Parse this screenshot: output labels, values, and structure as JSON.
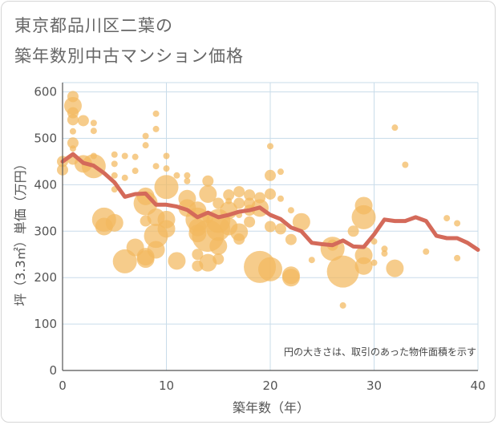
{
  "chart_data": {
    "type": "scatter",
    "title_lines": [
      "東京都品川区二葉の",
      "築年数別中古マンション価格"
    ],
    "xlabel": "築年数（年）",
    "ylabel": "坪（3.3㎡）単価（万円）",
    "xlim": [
      0,
      40
    ],
    "ylim": [
      0,
      620
    ],
    "x_ticks": [
      0,
      10,
      20,
      30,
      40
    ],
    "y_ticks": [
      0,
      100,
      200,
      300,
      400,
      500,
      600
    ],
    "grid": true,
    "note": "円の大きさは、取引のあった物件面積を示す",
    "bubble_color": "#f2b85e",
    "line_color": "#d46a5a",
    "bubbles": [
      {
        "x": 0,
        "y": 450,
        "s": 2
      },
      {
        "x": 0,
        "y": 432,
        "s": 2
      },
      {
        "x": 1,
        "y": 590,
        "s": 2
      },
      {
        "x": 1,
        "y": 570,
        "s": 3
      },
      {
        "x": 1,
        "y": 555,
        "s": 2
      },
      {
        "x": 1,
        "y": 540,
        "s": 2
      },
      {
        "x": 1,
        "y": 515,
        "s": 1
      },
      {
        "x": 1,
        "y": 490,
        "s": 2
      },
      {
        "x": 1,
        "y": 478,
        "s": 1
      },
      {
        "x": 1,
        "y": 455,
        "s": 2
      },
      {
        "x": 2,
        "y": 538,
        "s": 2
      },
      {
        "x": 2,
        "y": 445,
        "s": 3
      },
      {
        "x": 3,
        "y": 533,
        "s": 1
      },
      {
        "x": 3,
        "y": 516,
        "s": 1
      },
      {
        "x": 3,
        "y": 462,
        "s": 1
      },
      {
        "x": 3,
        "y": 440,
        "s": 4
      },
      {
        "x": 4,
        "y": 325,
        "s": 4
      },
      {
        "x": 4,
        "y": 310,
        "s": 3
      },
      {
        "x": 5,
        "y": 465,
        "s": 1
      },
      {
        "x": 5,
        "y": 445,
        "s": 1
      },
      {
        "x": 5,
        "y": 420,
        "s": 1
      },
      {
        "x": 5,
        "y": 390,
        "s": 1
      },
      {
        "x": 5,
        "y": 318,
        "s": 3
      },
      {
        "x": 6,
        "y": 462,
        "s": 1
      },
      {
        "x": 6,
        "y": 415,
        "s": 1
      },
      {
        "x": 6,
        "y": 235,
        "s": 4
      },
      {
        "x": 7,
        "y": 460,
        "s": 1
      },
      {
        "x": 7,
        "y": 430,
        "s": 1
      },
      {
        "x": 7,
        "y": 265,
        "s": 3
      },
      {
        "x": 8,
        "y": 505,
        "s": 1
      },
      {
        "x": 8,
        "y": 485,
        "s": 1
      },
      {
        "x": 8,
        "y": 375,
        "s": 3
      },
      {
        "x": 8,
        "y": 360,
        "s": 4
      },
      {
        "x": 8,
        "y": 322,
        "s": 2
      },
      {
        "x": 8,
        "y": 245,
        "s": 3
      },
      {
        "x": 8,
        "y": 240,
        "s": 3
      },
      {
        "x": 9,
        "y": 553,
        "s": 1
      },
      {
        "x": 9,
        "y": 520,
        "s": 1
      },
      {
        "x": 9,
        "y": 440,
        "s": 1
      },
      {
        "x": 9,
        "y": 330,
        "s": 3
      },
      {
        "x": 9,
        "y": 290,
        "s": 4
      },
      {
        "x": 9,
        "y": 260,
        "s": 3
      },
      {
        "x": 10,
        "y": 462,
        "s": 1
      },
      {
        "x": 10,
        "y": 435,
        "s": 1
      },
      {
        "x": 10,
        "y": 395,
        "s": 4
      },
      {
        "x": 10,
        "y": 325,
        "s": 3
      },
      {
        "x": 10,
        "y": 305,
        "s": 3
      },
      {
        "x": 11,
        "y": 420,
        "s": 1
      },
      {
        "x": 11,
        "y": 236,
        "s": 3
      },
      {
        "x": 12,
        "y": 420,
        "s": 1
      },
      {
        "x": 12,
        "y": 408,
        "s": 1
      },
      {
        "x": 12,
        "y": 370,
        "s": 3
      },
      {
        "x": 12,
        "y": 350,
        "s": 3
      },
      {
        "x": 13,
        "y": 345,
        "s": 3
      },
      {
        "x": 13,
        "y": 325,
        "s": 4
      },
      {
        "x": 13,
        "y": 308,
        "s": 3
      },
      {
        "x": 13,
        "y": 295,
        "s": 3
      },
      {
        "x": 13,
        "y": 250,
        "s": 2
      },
      {
        "x": 13,
        "y": 225,
        "s": 2
      },
      {
        "x": 14,
        "y": 408,
        "s": 2
      },
      {
        "x": 14,
        "y": 380,
        "s": 3
      },
      {
        "x": 14,
        "y": 330,
        "s": 2
      },
      {
        "x": 14,
        "y": 290,
        "s": 5
      },
      {
        "x": 14,
        "y": 232,
        "s": 3
      },
      {
        "x": 15,
        "y": 360,
        "s": 2
      },
      {
        "x": 15,
        "y": 322,
        "s": 4
      },
      {
        "x": 15,
        "y": 305,
        "s": 4
      },
      {
        "x": 15,
        "y": 268,
        "s": 3
      },
      {
        "x": 15,
        "y": 240,
        "s": 2
      },
      {
        "x": 16,
        "y": 378,
        "s": 2
      },
      {
        "x": 16,
        "y": 365,
        "s": 1
      },
      {
        "x": 16,
        "y": 345,
        "s": 3
      },
      {
        "x": 16,
        "y": 310,
        "s": 3
      },
      {
        "x": 17,
        "y": 385,
        "s": 2
      },
      {
        "x": 17,
        "y": 360,
        "s": 2
      },
      {
        "x": 17,
        "y": 335,
        "s": 1
      },
      {
        "x": 17,
        "y": 298,
        "s": 3
      },
      {
        "x": 17,
        "y": 283,
        "s": 2
      },
      {
        "x": 18,
        "y": 378,
        "s": 2
      },
      {
        "x": 18,
        "y": 360,
        "s": 2
      },
      {
        "x": 18,
        "y": 345,
        "s": 2
      },
      {
        "x": 18,
        "y": 320,
        "s": 2
      },
      {
        "x": 19,
        "y": 372,
        "s": 2
      },
      {
        "x": 19,
        "y": 350,
        "s": 3
      },
      {
        "x": 19,
        "y": 223,
        "s": 5
      },
      {
        "x": 20,
        "y": 483,
        "s": 1
      },
      {
        "x": 20,
        "y": 420,
        "s": 2
      },
      {
        "x": 20,
        "y": 380,
        "s": 2
      },
      {
        "x": 20,
        "y": 310,
        "s": 2
      },
      {
        "x": 20,
        "y": 218,
        "s": 4
      },
      {
        "x": 21,
        "y": 428,
        "s": 1
      },
      {
        "x": 21,
        "y": 370,
        "s": 1
      },
      {
        "x": 21,
        "y": 305,
        "s": 2
      },
      {
        "x": 22,
        "y": 345,
        "s": 1
      },
      {
        "x": 22,
        "y": 282,
        "s": 2
      },
      {
        "x": 22,
        "y": 205,
        "s": 3
      },
      {
        "x": 22,
        "y": 200,
        "s": 3
      },
      {
        "x": 23,
        "y": 320,
        "s": 3
      },
      {
        "x": 24,
        "y": 238,
        "s": 1
      },
      {
        "x": 26,
        "y": 270,
        "s": 2
      },
      {
        "x": 26,
        "y": 262,
        "s": 4
      },
      {
        "x": 27,
        "y": 140,
        "s": 1
      },
      {
        "x": 27,
        "y": 213,
        "s": 5
      },
      {
        "x": 28,
        "y": 300,
        "s": 2
      },
      {
        "x": 29,
        "y": 355,
        "s": 3
      },
      {
        "x": 29,
        "y": 330,
        "s": 4
      },
      {
        "x": 29,
        "y": 248,
        "s": 3
      },
      {
        "x": 29,
        "y": 225,
        "s": 3
      },
      {
        "x": 30,
        "y": 278,
        "s": 1
      },
      {
        "x": 30,
        "y": 232,
        "s": 1
      },
      {
        "x": 31,
        "y": 262,
        "s": 1
      },
      {
        "x": 31,
        "y": 252,
        "s": 1
      },
      {
        "x": 32,
        "y": 523,
        "s": 1
      },
      {
        "x": 32,
        "y": 220,
        "s": 3
      },
      {
        "x": 33,
        "y": 443,
        "s": 1
      },
      {
        "x": 35,
        "y": 256,
        "s": 1
      },
      {
        "x": 37,
        "y": 328,
        "s": 1
      },
      {
        "x": 38,
        "y": 317,
        "s": 1
      },
      {
        "x": 38,
        "y": 242,
        "s": 1
      }
    ],
    "line": {
      "x": [
        0,
        1,
        2,
        3,
        4,
        5,
        6,
        7,
        8,
        9,
        10,
        11,
        12,
        13,
        14,
        15,
        16,
        17,
        18,
        19,
        20,
        21,
        22,
        23,
        24,
        25,
        26,
        27,
        28,
        29,
        30,
        31,
        32,
        33,
        34,
        35,
        36,
        37,
        38,
        39,
        40
      ],
      "y": [
        450,
        466,
        447,
        441,
        425,
        405,
        374,
        380,
        381,
        357,
        357,
        353,
        346,
        330,
        340,
        330,
        335,
        342,
        345,
        351,
        335,
        326,
        308,
        300,
        275,
        272,
        270,
        280,
        267,
        266,
        293,
        325,
        322,
        322,
        330,
        322,
        290,
        285,
        285,
        275,
        260
      ]
    }
  }
}
